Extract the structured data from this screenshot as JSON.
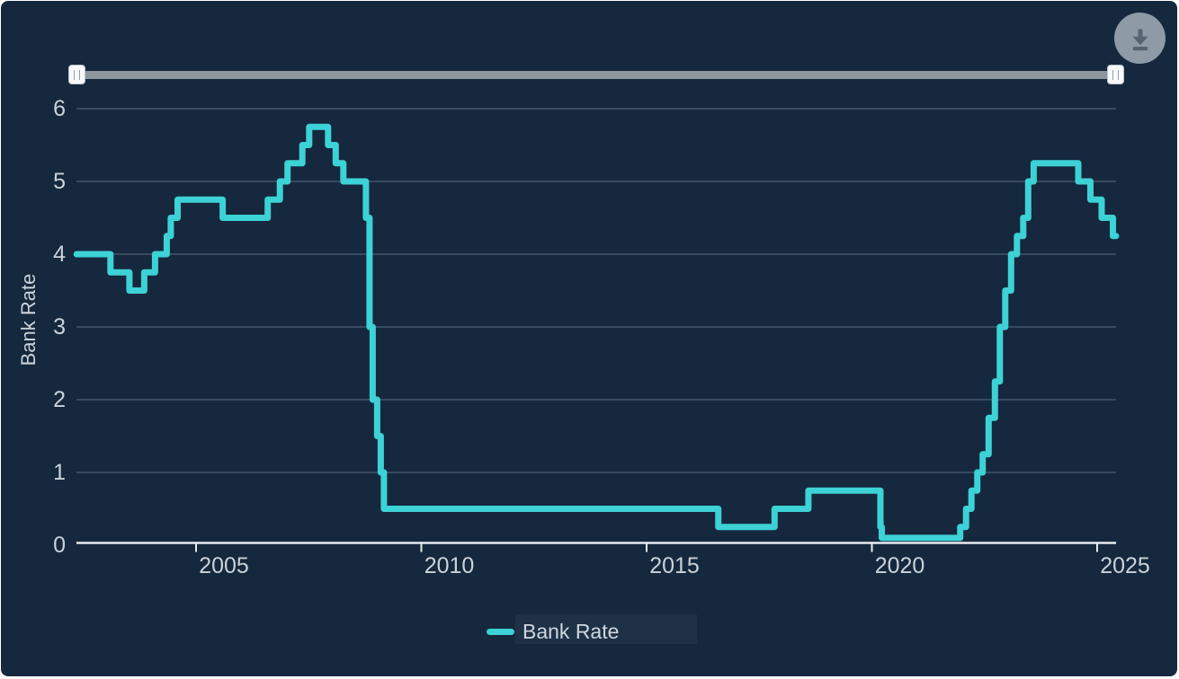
{
  "panel": {
    "background": "#15283E"
  },
  "icons": {
    "download": "⬇",
    "slider_grip_left": "||",
    "slider_grip_right": "||"
  },
  "colors": {
    "accent_line": "#3DD2D5",
    "background": "#15283E",
    "gridline": "#3E4F66",
    "axis": "#E8EBEE",
    "tick_text": "#CBD2DA",
    "slider_track": "#8D959E",
    "slider_handle": "#F8F9FA",
    "download_button": "#9AA4B0",
    "download_icon": "#5D6875"
  },
  "chart_data": {
    "type": "line",
    "step": true,
    "title": "",
    "xlabel": "",
    "ylabel": "Bank Rate",
    "ylim": [
      0,
      6
    ],
    "xlim": [
      2002.35,
      2025.42
    ],
    "x_end": 2025.42,
    "grid": true,
    "legend_position": "bottom",
    "y_ticks": [
      {
        "value": 0,
        "label": "0"
      },
      {
        "value": 1,
        "label": "1"
      },
      {
        "value": 2,
        "label": "2"
      },
      {
        "value": 3,
        "label": "3"
      },
      {
        "value": 4,
        "label": "4"
      },
      {
        "value": 5,
        "label": "5"
      },
      {
        "value": 6,
        "label": "6"
      }
    ],
    "x_ticks": [
      {
        "year": 2005,
        "label": "2005"
      },
      {
        "year": 2010,
        "label": "2010"
      },
      {
        "year": 2015,
        "label": "2015"
      },
      {
        "year": 2020,
        "label": "2020"
      },
      {
        "year": 2025,
        "label": "2025"
      }
    ],
    "series": [
      {
        "name": "Bank Rate",
        "color": "#3DD2D5",
        "points_note": "step series: [decimal_year_effective, rate_percent]",
        "points": [
          [
            2002.35,
            4.0
          ],
          [
            2003.1,
            3.75
          ],
          [
            2003.52,
            3.5
          ],
          [
            2003.85,
            3.75
          ],
          [
            2004.09,
            4.0
          ],
          [
            2004.35,
            4.25
          ],
          [
            2004.44,
            4.5
          ],
          [
            2004.59,
            4.75
          ],
          [
            2005.59,
            4.5
          ],
          [
            2006.59,
            4.75
          ],
          [
            2006.86,
            5.0
          ],
          [
            2007.03,
            5.25
          ],
          [
            2007.36,
            5.5
          ],
          [
            2007.51,
            5.75
          ],
          [
            2007.93,
            5.5
          ],
          [
            2008.1,
            5.25
          ],
          [
            2008.27,
            5.0
          ],
          [
            2008.77,
            4.5
          ],
          [
            2008.85,
            3.0
          ],
          [
            2008.92,
            2.0
          ],
          [
            2009.02,
            1.5
          ],
          [
            2009.1,
            1.0
          ],
          [
            2009.17,
            0.5
          ],
          [
            2016.59,
            0.25
          ],
          [
            2017.84,
            0.5
          ],
          [
            2018.59,
            0.75
          ],
          [
            2020.19,
            0.25
          ],
          [
            2020.22,
            0.1
          ],
          [
            2021.96,
            0.25
          ],
          [
            2022.09,
            0.5
          ],
          [
            2022.21,
            0.75
          ],
          [
            2022.34,
            1.0
          ],
          [
            2022.46,
            1.25
          ],
          [
            2022.59,
            1.75
          ],
          [
            2022.73,
            2.25
          ],
          [
            2022.84,
            3.0
          ],
          [
            2022.96,
            3.5
          ],
          [
            2023.09,
            4.0
          ],
          [
            2023.22,
            4.25
          ],
          [
            2023.36,
            4.5
          ],
          [
            2023.47,
            5.0
          ],
          [
            2023.59,
            5.25
          ],
          [
            2024.58,
            5.0
          ],
          [
            2024.85,
            4.75
          ],
          [
            2025.1,
            4.5
          ],
          [
            2025.35,
            4.25
          ]
        ]
      }
    ]
  }
}
